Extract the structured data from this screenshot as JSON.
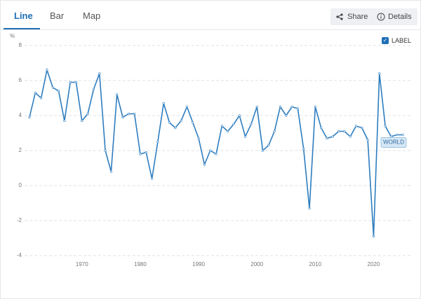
{
  "ui": {
    "tabs": [
      "Line",
      "Bar",
      "Map"
    ],
    "buttons": [
      "Share",
      "Details"
    ],
    "checkbox_label": "LABEL"
  },
  "chart_data": {
    "type": "line",
    "y_label": "%",
    "x": [
      1961,
      1962,
      1963,
      1964,
      1965,
      1966,
      1967,
      1968,
      1969,
      1970,
      1971,
      1972,
      1973,
      1974,
      1975,
      1976,
      1977,
      1978,
      1979,
      1980,
      1981,
      1982,
      1983,
      1984,
      1985,
      1986,
      1987,
      1988,
      1989,
      1990,
      1991,
      1992,
      1993,
      1994,
      1995,
      1996,
      1997,
      1998,
      1999,
      2000,
      2001,
      2002,
      2003,
      2004,
      2005,
      2006,
      2007,
      2008,
      2009,
      2010,
      2011,
      2012,
      2013,
      2014,
      2015,
      2016,
      2017,
      2018,
      2019,
      2020,
      2021,
      2022,
      2023,
      2024,
      2025
    ],
    "series": [
      {
        "name": "WORLD",
        "color": "#2e7dbf",
        "values": [
          3.9,
          5.3,
          5.0,
          6.6,
          5.6,
          5.4,
          3.7,
          5.9,
          5.9,
          3.7,
          4.1,
          5.5,
          6.4,
          2.0,
          0.8,
          5.2,
          3.9,
          4.1,
          4.1,
          1.8,
          1.9,
          0.4,
          2.5,
          4.7,
          3.6,
          3.3,
          3.7,
          4.5,
          3.6,
          2.7,
          1.2,
          2.0,
          1.8,
          3.4,
          3.1,
          3.5,
          4.0,
          2.8,
          3.5,
          4.5,
          2.0,
          2.3,
          3.1,
          4.5,
          4.0,
          4.5,
          4.4,
          2.1,
          -1.3,
          4.5,
          3.3,
          2.7,
          2.8,
          3.1,
          3.1,
          2.8,
          3.4,
          3.3,
          2.6,
          -2.9,
          6.4,
          3.4,
          2.8,
          2.9,
          2.9
        ]
      }
    ],
    "xlim": [
      1961,
      2025
    ],
    "xticks": [
      1970,
      1980,
      1990,
      2000,
      2010,
      2020
    ],
    "ylim": [
      -4,
      8
    ],
    "yticks": [
      -4,
      -2,
      0,
      2,
      4,
      6,
      8
    ],
    "grid": true
  }
}
